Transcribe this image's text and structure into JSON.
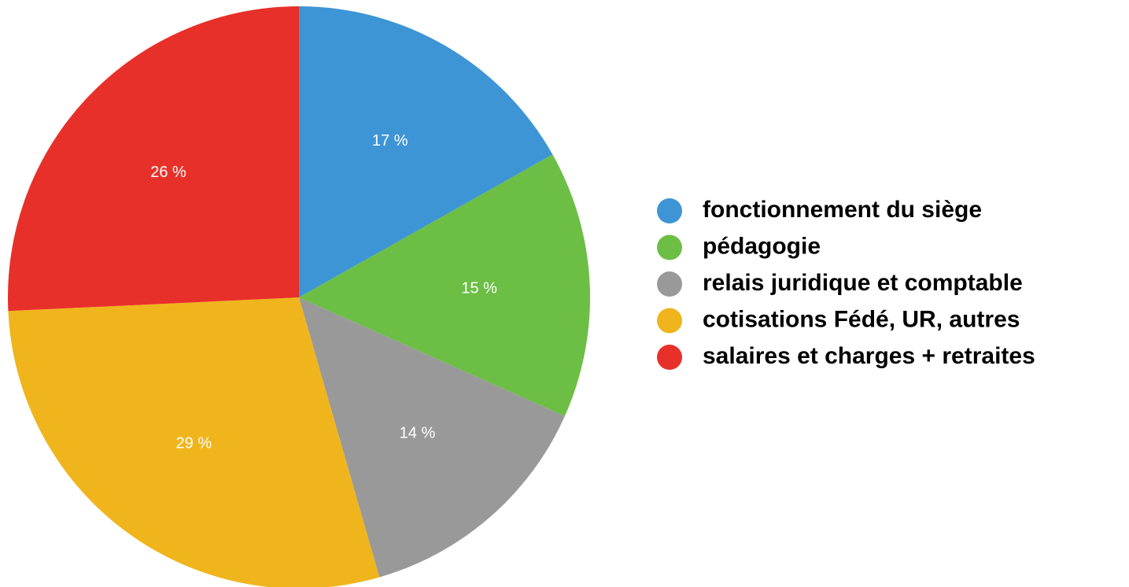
{
  "chart_data": {
    "type": "pie",
    "categories": [
      "fonctionnement du siège",
      "pédagogie",
      "relais juridique et comptable",
      "cotisations Fédé, UR, autres",
      "salaires et charges + retraites"
    ],
    "values": [
      17,
      15,
      14,
      29,
      26
    ],
    "value_labels": [
      "17 %",
      "15 %",
      "14 %",
      "29 %",
      "26 %"
    ],
    "colors": [
      "#3d95d6",
      "#6cbe45",
      "#999999",
      "#f0b51c",
      "#e8302a"
    ],
    "legend": "right"
  }
}
